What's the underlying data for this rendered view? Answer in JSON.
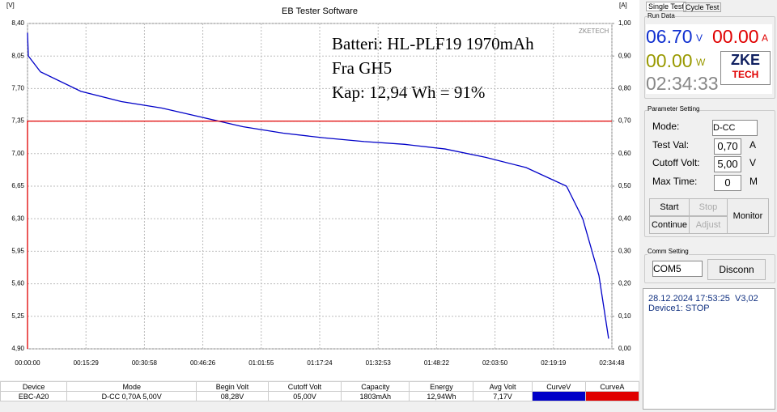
{
  "chart_data": {
    "type": "line",
    "title": "EB Tester Software",
    "y_unit": "[V]",
    "y2_unit": "[A]",
    "annotations": [
      "ZKETECH",
      "Batteri: HL-PLF19 1970mAh",
      "Fra GH5",
      "Kap: 12,94 Wh = 91%"
    ],
    "xlim": [
      0,
      9288
    ],
    "xticks": [
      {
        "value": 0,
        "label": "00:00:00"
      },
      {
        "value": 929,
        "label": "00:15:29"
      },
      {
        "value": 1858,
        "label": "00:30:58"
      },
      {
        "value": 2786,
        "label": "00:46:26"
      },
      {
        "value": 3715,
        "label": "01:01:55"
      },
      {
        "value": 4644,
        "label": "01:17:24"
      },
      {
        "value": 5573,
        "label": "01:32:53"
      },
      {
        "value": 6502,
        "label": "01:48:22"
      },
      {
        "value": 7430,
        "label": "02:03:50"
      },
      {
        "value": 8359,
        "label": "02:19:19"
      },
      {
        "value": 9288,
        "label": "02:34:48"
      }
    ],
    "ylim": [
      4.9,
      8.4
    ],
    "yticks": [
      {
        "value": 4.9,
        "label": "4,90"
      },
      {
        "value": 5.25,
        "label": "5,25"
      },
      {
        "value": 5.6,
        "label": "5,60"
      },
      {
        "value": 5.95,
        "label": "5,95"
      },
      {
        "value": 6.3,
        "label": "6,30"
      },
      {
        "value": 6.65,
        "label": "6,65"
      },
      {
        "value": 7,
        "label": "7,00"
      },
      {
        "value": 7.35,
        "label": "7,35"
      },
      {
        "value": 7.7,
        "label": "7,70"
      },
      {
        "value": 8.05,
        "label": "8,05"
      },
      {
        "value": 8.4,
        "label": "8,40"
      }
    ],
    "y2lim": [
      0,
      1
    ],
    "y2ticks": [
      {
        "value": 0,
        "label": "0,00"
      },
      {
        "value": 0.1,
        "label": "0,10"
      },
      {
        "value": 0.2,
        "label": "0,20"
      },
      {
        "value": 0.3,
        "label": "0,30"
      },
      {
        "value": 0.4,
        "label": "0,40"
      },
      {
        "value": 0.5,
        "label": "0,50"
      },
      {
        "value": 0.6,
        "label": "0,60"
      },
      {
        "value": 0.7,
        "label": "0,70"
      },
      {
        "value": 0.8,
        "label": "0,80"
      },
      {
        "value": 0.9,
        "label": "0,90"
      },
      {
        "value": 1,
        "label": "1,00"
      }
    ],
    "grid": true,
    "series": [
      {
        "color": "#0000c8",
        "x": [
          0,
          13,
          206,
          849,
          1492,
          2135,
          2779,
          3422,
          4065,
          4708,
          5351,
          5995,
          6638,
          7281,
          7924,
          8567,
          8825,
          9082,
          9236
        ],
        "values": [
          8.3,
          8.05,
          7.88,
          7.67,
          7.56,
          7.49,
          7.39,
          7.29,
          7.22,
          7.17,
          7.13,
          7.1,
          7.05,
          6.96,
          6.85,
          6.65,
          6.3,
          5.69,
          5.01
        ]
      },
      {
        "color": "#e00000",
        "axis": "y2",
        "x": [
          0,
          0,
          9288
        ],
        "values": [
          0,
          0.7,
          0.7
        ]
      }
    ]
  },
  "table": {
    "headers": [
      "Device",
      "Mode",
      "Begin Volt",
      "Cutoff Volt",
      "Capacity",
      "Energy",
      "Avg Volt",
      "CurveV",
      "CurveA"
    ],
    "row": [
      "EBC-A20",
      "D-CC  0,70A  5,00V",
      "08,28V",
      "05,00V",
      "1803mAh",
      "12,94Wh",
      "7,17V"
    ]
  },
  "panel": {
    "tabs": [
      "Single Test",
      "Cycle Test"
    ],
    "run_data": "Run Data",
    "volt": "06.70",
    "volt_unit": "V",
    "amp": "00.00",
    "amp_unit": "A",
    "watt": "00.00",
    "watt_unit": "W",
    "time": "02:34:33",
    "logo": [
      "ZKE",
      "TECH"
    ],
    "param_title": "Parameter Setting",
    "mode_label": "Mode:",
    "mode": "D-CC",
    "test_label": "Test Val:",
    "test_val": "0,70",
    "test_unit": "A",
    "cutoff_label": "Cutoff Volt:",
    "cutoff_val": "5,00",
    "cutoff_unit": "V",
    "max_label": "Max Time:",
    "max_val": "0",
    "max_unit": "M",
    "buttons": [
      "Start",
      "Stop",
      "Continue",
      "Adjust",
      "Monitor"
    ],
    "comm_title": "Comm Setting",
    "port": "COM5",
    "disconn": "Disconn",
    "status": [
      "28.12.2024 17:53:25  V3,02",
      "Device1: STOP"
    ]
  }
}
